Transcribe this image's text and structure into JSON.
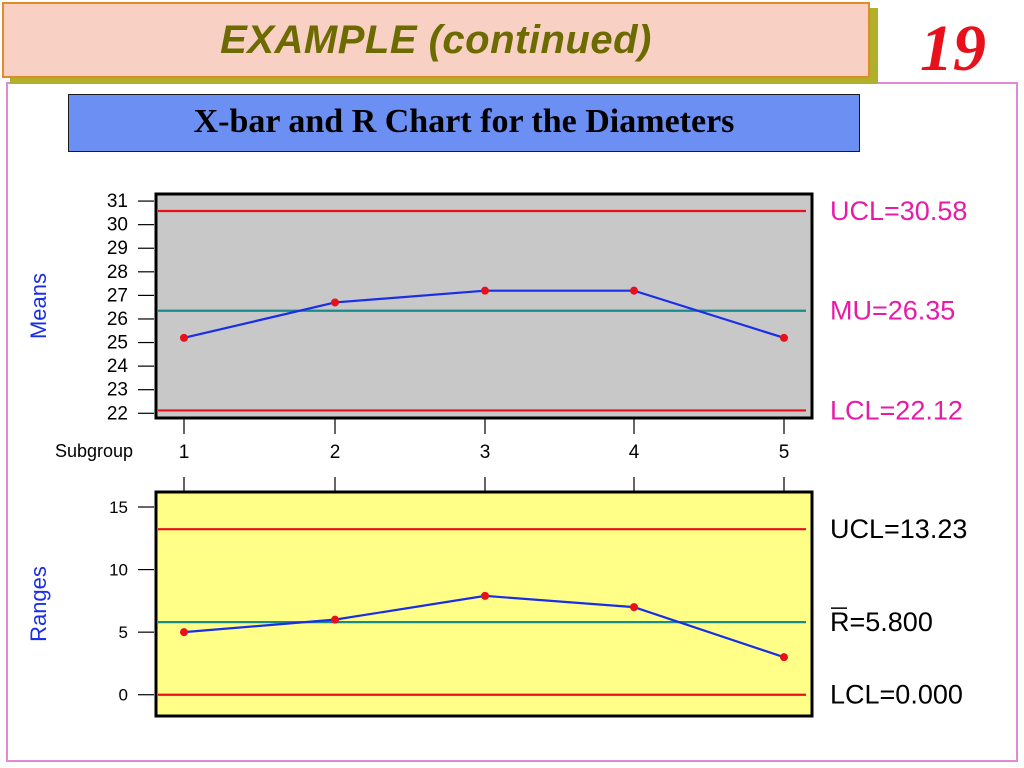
{
  "slide": {
    "title": "EXAMPLE  (continued)",
    "page_number": "19",
    "chart_heading": "X-bar and R Chart for the Diameters"
  },
  "colors": {
    "means_bg": "#c8c8c8",
    "ranges_bg": "#ffff88",
    "limit_line": "#e8101a",
    "center_line": "#1a8a8a",
    "series_line": "#1a2ee8",
    "point": "#e8101a",
    "means_label": "#e81aa8",
    "axis_title": "#1a2ee8"
  },
  "chart_data": [
    {
      "type": "line",
      "ylabel": "Means",
      "xlabel": "Subgroup",
      "x": [
        1,
        2,
        3,
        4,
        5
      ],
      "series": [
        {
          "values": [
            25.2,
            26.7,
            27.2,
            27.2,
            25.2
          ]
        }
      ],
      "ylim": [
        21.8,
        31.3
      ],
      "yticks": [
        22,
        23,
        24,
        25,
        26,
        27,
        28,
        29,
        30,
        31
      ],
      "reference_lines": [
        {
          "label": "UCL=30.58",
          "value": 30.58,
          "kind": "limit"
        },
        {
          "label": "MU=26.35",
          "value": 26.35,
          "kind": "center"
        },
        {
          "label": "LCL=22.12",
          "value": 22.12,
          "kind": "limit"
        }
      ]
    },
    {
      "type": "line",
      "ylabel": "Ranges",
      "xlabel": "",
      "x": [
        1,
        2,
        3,
        4,
        5
      ],
      "series": [
        {
          "values": [
            5.0,
            6.0,
            7.9,
            7.0,
            3.0
          ]
        }
      ],
      "ylim": [
        -1.7,
        16.2
      ],
      "yticks": [
        0,
        5,
        10,
        15
      ],
      "reference_lines": [
        {
          "label": "UCL=13.23",
          "value": 13.23,
          "kind": "limit"
        },
        {
          "label": "R=5.800",
          "value": 5.8,
          "kind": "center",
          "overline_first": true
        },
        {
          "label": "LCL=0.000",
          "value": 0.0,
          "kind": "limit"
        }
      ]
    }
  ]
}
